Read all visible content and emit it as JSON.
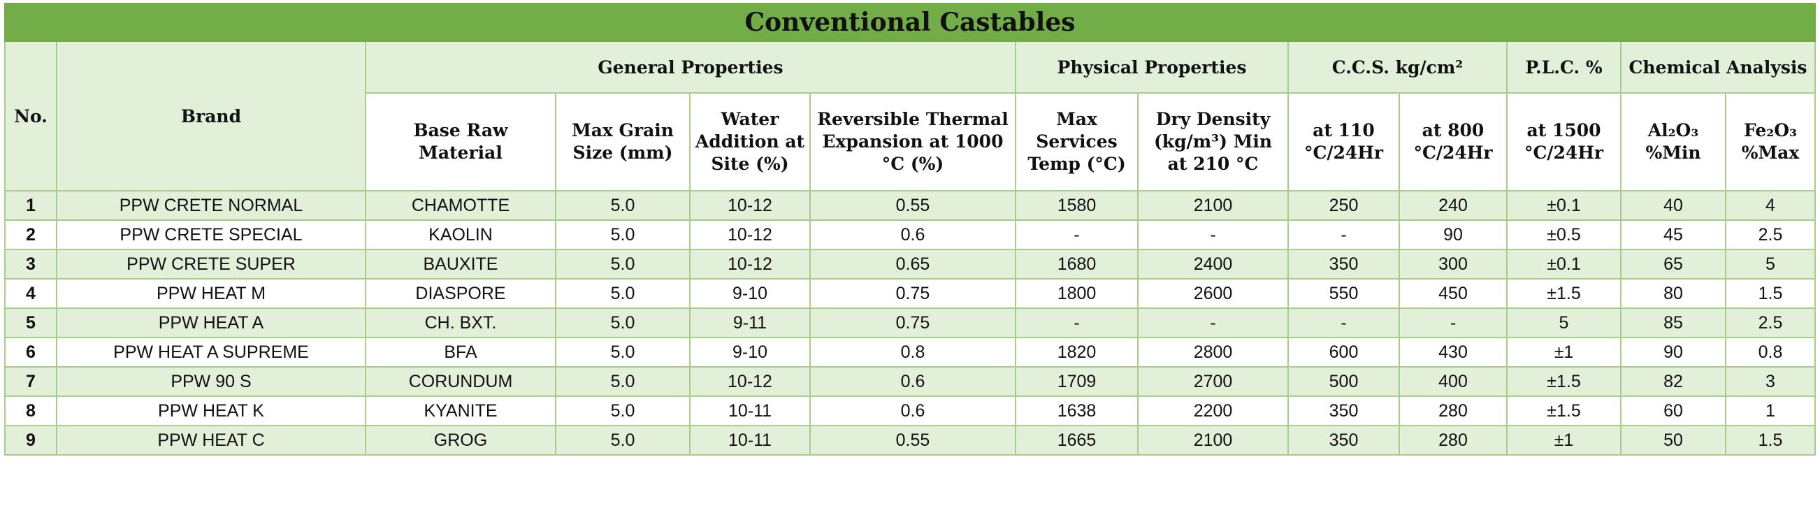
{
  "title": "Conventional Castables",
  "headers": {
    "no": "No.",
    "brand": "Brand",
    "groups": {
      "general": "General Properties",
      "physical": "Physical Properties",
      "ccs": "C.C.S. kg/cm²",
      "plc": "P.L.C. %",
      "chemical": "Chemical Analysis"
    },
    "columns": {
      "base_raw_material": "Base Raw Material",
      "max_grain_size": "Max Grain Size (mm)",
      "water_addition": "Water Addition at Site (%)",
      "reversible_thermal_expansion": "Reversible Thermal Expansion at 1000 °C (%)",
      "max_services_temp": "Max Services Temp (°C)",
      "dry_density": "Dry Density (kg/m³) Min at 210 °C",
      "ccs_110": "at 110 °C/24Hr",
      "ccs_800": "at 800 °C/24Hr",
      "plc_1500": "at 1500 °C/24Hr",
      "al2o3": "Al₂O₃ %Min",
      "fe2o3": "Fe₂O₃ %Max"
    }
  },
  "rows": [
    {
      "no": "1",
      "brand": "PPW CRETE NORMAL",
      "base": "CHAMOTTE",
      "grain": "5.0",
      "water": "10-12",
      "rte": "0.55",
      "temp": "1580",
      "density": "2100",
      "ccs110": "250",
      "ccs800": "240",
      "plc": "±0.1",
      "al2o3": "40",
      "fe2o3": "4"
    },
    {
      "no": "2",
      "brand": "PPW CRETE SPECIAL",
      "base": "KAOLIN",
      "grain": "5.0",
      "water": "10-12",
      "rte": "0.6",
      "temp": "-",
      "density": "-",
      "ccs110": "-",
      "ccs800": "90",
      "plc": "±0.5",
      "al2o3": "45",
      "fe2o3": "2.5"
    },
    {
      "no": "3",
      "brand": "PPW CRETE SUPER",
      "base": "BAUXITE",
      "grain": "5.0",
      "water": "10-12",
      "rte": "0.65",
      "temp": "1680",
      "density": "2400",
      "ccs110": "350",
      "ccs800": "300",
      "plc": "±0.1",
      "al2o3": "65",
      "fe2o3": "5"
    },
    {
      "no": "4",
      "brand": "PPW HEAT M",
      "base": "DIASPORE",
      "grain": "5.0",
      "water": "9-10",
      "rte": "0.75",
      "temp": "1800",
      "density": "2600",
      "ccs110": "550",
      "ccs800": "450",
      "plc": "±1.5",
      "al2o3": "80",
      "fe2o3": "1.5"
    },
    {
      "no": "5",
      "brand": "PPW HEAT A",
      "base": "CH. BXT.",
      "grain": "5.0",
      "water": "9-11",
      "rte": "0.75",
      "temp": "-",
      "density": "-",
      "ccs110": "-",
      "ccs800": "-",
      "plc": "5",
      "al2o3": "85",
      "fe2o3": "2.5"
    },
    {
      "no": "6",
      "brand": "PPW HEAT A SUPREME",
      "base": "BFA",
      "grain": "5.0",
      "water": "9-10",
      "rte": "0.8",
      "temp": "1820",
      "density": "2800",
      "ccs110": "600",
      "ccs800": "430",
      "plc": "±1",
      "al2o3": "90",
      "fe2o3": "0.8"
    },
    {
      "no": "7",
      "brand": "PPW 90 S",
      "base": "CORUNDUM",
      "grain": "5.0",
      "water": "10-12",
      "rte": "0.6",
      "temp": "1709",
      "density": "2700",
      "ccs110": "500",
      "ccs800": "400",
      "plc": "±1.5",
      "al2o3": "82",
      "fe2o3": "3"
    },
    {
      "no": "8",
      "brand": "PPW HEAT K",
      "base": "KYANITE",
      "grain": "5.0",
      "water": "10-11",
      "rte": "0.6",
      "temp": "1638",
      "density": "2200",
      "ccs110": "350",
      "ccs800": "280",
      "plc": "±1.5",
      "al2o3": "60",
      "fe2o3": "1"
    },
    {
      "no": "9",
      "brand": "PPW HEAT C",
      "base": "GROG",
      "grain": "5.0",
      "water": "10-11",
      "rte": "0.55",
      "temp": "1665",
      "density": "2100",
      "ccs110": "350",
      "ccs800": "280",
      "plc": "±1",
      "al2o3": "50",
      "fe2o3": "1.5"
    }
  ],
  "colors": {
    "title_bg": "#72ad47",
    "band_light": "#e2efd9",
    "border": "#a8cd8a"
  }
}
